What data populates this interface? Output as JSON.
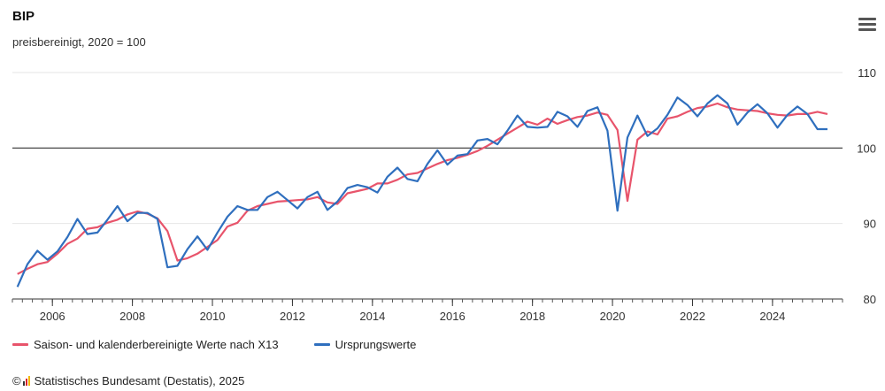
{
  "chart_data": {
    "type": "line",
    "title": "BIP",
    "subtitle": "preisbereinigt, 2020 = 100",
    "xlabel": "",
    "ylabel": "",
    "x_ticks": [
      "2006",
      "2008",
      "2010",
      "2012",
      "2014",
      "2016",
      "2018",
      "2020",
      "2022",
      "2024"
    ],
    "y_ticks": [
      80,
      90,
      100,
      110
    ],
    "ylim": [
      80,
      110
    ],
    "xlim": [
      2005.0,
      2025.75
    ],
    "reference_line": 100,
    "grid": true,
    "legend_position": "bottom-left",
    "series": [
      {
        "name": "Saison- und kalenderbereinigte Werte nach X13",
        "color": "#e8546b",
        "x": [
          2005.125,
          2005.375,
          2005.625,
          2005.875,
          2006.125,
          2006.375,
          2006.625,
          2006.875,
          2007.125,
          2007.375,
          2007.625,
          2007.875,
          2008.125,
          2008.375,
          2008.625,
          2008.875,
          2009.125,
          2009.375,
          2009.625,
          2009.875,
          2010.125,
          2010.375,
          2010.625,
          2010.875,
          2011.125,
          2011.375,
          2011.625,
          2011.875,
          2012.125,
          2012.375,
          2012.625,
          2012.875,
          2013.125,
          2013.375,
          2013.625,
          2013.875,
          2014.125,
          2014.375,
          2014.625,
          2014.875,
          2015.125,
          2015.375,
          2015.625,
          2015.875,
          2016.125,
          2016.375,
          2016.625,
          2016.875,
          2017.125,
          2017.375,
          2017.625,
          2017.875,
          2018.125,
          2018.375,
          2018.625,
          2018.875,
          2019.125,
          2019.375,
          2019.625,
          2019.875,
          2020.125,
          2020.375,
          2020.625,
          2020.875,
          2021.125,
          2021.375,
          2021.625,
          2021.875,
          2022.125,
          2022.375,
          2022.625,
          2022.875,
          2023.125,
          2023.375,
          2023.625,
          2023.875,
          2024.125,
          2024.375,
          2024.625,
          2024.875,
          2025.125,
          2025.375
        ],
        "values": [
          83.3,
          84.0,
          84.6,
          84.9,
          86.0,
          87.3,
          88.0,
          89.3,
          89.5,
          90.1,
          90.5,
          91.2,
          91.6,
          91.3,
          90.7,
          89.0,
          85.1,
          85.4,
          86.0,
          86.9,
          87.8,
          89.6,
          90.1,
          91.7,
          92.3,
          92.6,
          92.9,
          93.0,
          93.1,
          93.2,
          93.5,
          92.8,
          92.6,
          94.0,
          94.3,
          94.6,
          95.3,
          95.3,
          95.8,
          96.5,
          96.7,
          97.3,
          97.9,
          98.4,
          98.7,
          99.1,
          99.6,
          100.3,
          101.1,
          101.9,
          102.7,
          103.5,
          103.1,
          103.9,
          103.2,
          103.7,
          104.1,
          104.3,
          104.7,
          104.4,
          102.4,
          93.0,
          101.1,
          102.2,
          101.8,
          103.9,
          104.2,
          104.8,
          105.3,
          105.5,
          105.9,
          105.4,
          105.1,
          105.0,
          104.9,
          104.6,
          104.4,
          104.3,
          104.5,
          104.5,
          104.8,
          104.5
        ]
      },
      {
        "name": "Ursprungswerte",
        "color": "#2f6fbe",
        "x": [
          2005.125,
          2005.375,
          2005.625,
          2005.875,
          2006.125,
          2006.375,
          2006.625,
          2006.875,
          2007.125,
          2007.375,
          2007.625,
          2007.875,
          2008.125,
          2008.375,
          2008.625,
          2008.875,
          2009.125,
          2009.375,
          2009.625,
          2009.875,
          2010.125,
          2010.375,
          2010.625,
          2010.875,
          2011.125,
          2011.375,
          2011.625,
          2011.875,
          2012.125,
          2012.375,
          2012.625,
          2012.875,
          2013.125,
          2013.375,
          2013.625,
          2013.875,
          2014.125,
          2014.375,
          2014.625,
          2014.875,
          2015.125,
          2015.375,
          2015.625,
          2015.875,
          2016.125,
          2016.375,
          2016.625,
          2016.875,
          2017.125,
          2017.375,
          2017.625,
          2017.875,
          2018.125,
          2018.375,
          2018.625,
          2018.875,
          2019.125,
          2019.375,
          2019.625,
          2019.875,
          2020.125,
          2020.375,
          2020.625,
          2020.875,
          2021.125,
          2021.375,
          2021.625,
          2021.875,
          2022.125,
          2022.375,
          2022.625,
          2022.875,
          2023.125,
          2023.375,
          2023.625,
          2023.875,
          2024.125,
          2024.375,
          2024.625,
          2024.875,
          2025.125,
          2025.375
        ],
        "values": [
          81.6,
          84.6,
          86.4,
          85.2,
          86.3,
          88.2,
          90.6,
          88.6,
          88.8,
          90.5,
          92.3,
          90.3,
          91.4,
          91.4,
          90.6,
          84.2,
          84.4,
          86.6,
          88.3,
          86.5,
          88.8,
          90.9,
          92.3,
          91.8,
          91.8,
          93.5,
          94.2,
          93.1,
          92.0,
          93.5,
          94.2,
          91.8,
          92.9,
          94.7,
          95.1,
          94.8,
          94.1,
          96.2,
          97.4,
          95.9,
          95.6,
          97.9,
          99.7,
          97.8,
          99.0,
          99.2,
          101.0,
          101.2,
          100.5,
          102.3,
          104.3,
          102.8,
          102.7,
          102.8,
          104.8,
          104.2,
          102.8,
          104.9,
          105.4,
          102.3,
          91.7,
          101.4,
          104.3,
          101.6,
          102.6,
          104.4,
          106.7,
          105.7,
          104.2,
          105.9,
          107.0,
          105.9,
          103.1,
          104.7,
          105.8,
          104.6,
          102.7,
          104.4,
          105.5,
          104.5,
          102.5,
          102.5
        ]
      }
    ]
  },
  "legend": {
    "items": [
      {
        "label": "Saison- und kalenderbereinigte Werte nach X13",
        "color": "#e8546b"
      },
      {
        "label": "Ursprungswerte",
        "color": "#2f6fbe"
      }
    ]
  },
  "source": {
    "text": "Statistisches Bundesamt (Destatis), 2025",
    "copyright": "©"
  },
  "menu": {
    "icon": "hamburger-icon"
  }
}
